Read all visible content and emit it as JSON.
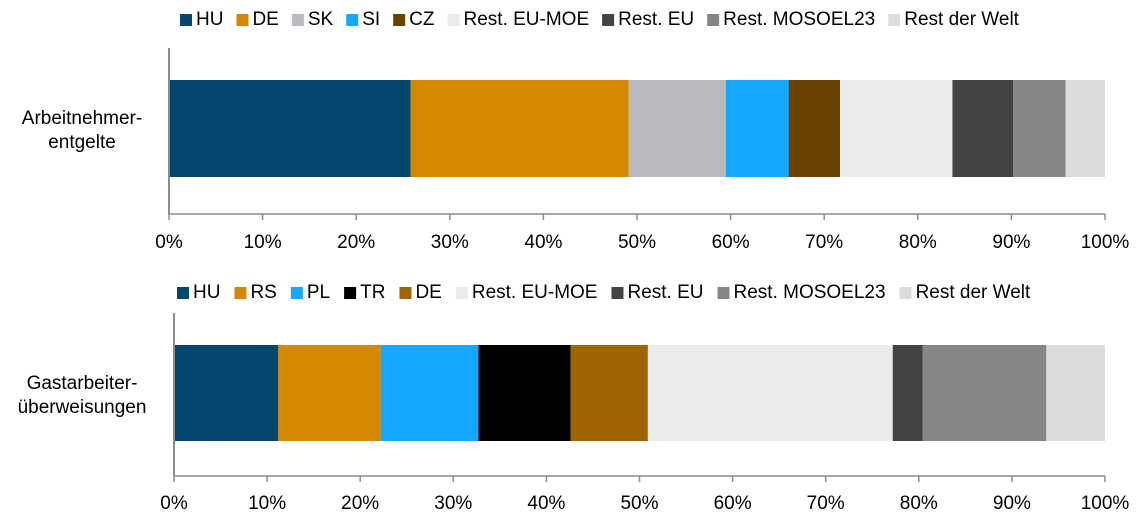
{
  "chart_data": [
    {
      "type": "bar",
      "orientation": "horizontal",
      "stacked": true,
      "percent": true,
      "categories": [
        "Arbeitnehmer-\nentgelte"
      ],
      "category_lines": [
        "Arbeitnehmer-",
        "entgelte"
      ],
      "series": [
        {
          "name": "HU",
          "values": [
            25.8
          ],
          "color": "#03476f"
        },
        {
          "name": "DE",
          "values": [
            23.3
          ],
          "color": "#d48700"
        },
        {
          "name": "SK",
          "values": [
            10.4
          ],
          "color": "#b8babd"
        },
        {
          "name": "SI",
          "values": [
            6.7
          ],
          "color": "#14a8ff"
        },
        {
          "name": "CZ",
          "values": [
            5.5
          ],
          "color": "#6a4300"
        },
        {
          "name": "Rest. EU-MOE",
          "values": [
            12.0
          ],
          "color": "#ebebec"
        },
        {
          "name": "Rest. EU",
          "values": [
            6.5
          ],
          "color": "#434345"
        },
        {
          "name": "Rest. MOSOEL23",
          "values": [
            5.6
          ],
          "color": "#868688"
        },
        {
          "name": "Rest der Welt",
          "values": [
            4.2
          ],
          "color": "#dcdcdc"
        }
      ],
      "xlim": [
        0,
        100
      ],
      "xticks": [
        "0%",
        "10%",
        "20%",
        "30%",
        "40%",
        "50%",
        "60%",
        "70%",
        "80%",
        "90%",
        "100%"
      ],
      "legend": "top",
      "grid": false
    },
    {
      "type": "bar",
      "orientation": "horizontal",
      "stacked": true,
      "percent": true,
      "categories": [
        "Gastarbeiter-\nüberweisungen"
      ],
      "category_lines": [
        "Gastarbeiter-",
        "überweisungen"
      ],
      "series": [
        {
          "name": "HU",
          "values": [
            11.2
          ],
          "color": "#03476f"
        },
        {
          "name": "RS",
          "values": [
            11.0
          ],
          "color": "#d48700"
        },
        {
          "name": "PL",
          "values": [
            10.5
          ],
          "color": "#14a8ff"
        },
        {
          "name": "TR",
          "values": [
            9.9
          ],
          "color": "#000000"
        },
        {
          "name": "DE",
          "values": [
            8.3
          ],
          "color": "#a06400"
        },
        {
          "name": "Rest. EU-MOE",
          "values": [
            26.3
          ],
          "color": "#ebebec"
        },
        {
          "name": "Rest. EU",
          "values": [
            3.2
          ],
          "color": "#434345"
        },
        {
          "name": "Rest. MOSOEL23",
          "values": [
            13.3
          ],
          "color": "#868688"
        },
        {
          "name": "Rest der Welt",
          "values": [
            6.3
          ],
          "color": "#dcdcdc"
        }
      ],
      "xlim": [
        0,
        100
      ],
      "xticks": [
        "0%",
        "10%",
        "20%",
        "30%",
        "40%",
        "50%",
        "60%",
        "70%",
        "80%",
        "90%",
        "100%"
      ],
      "legend": "top",
      "grid": false
    }
  ]
}
